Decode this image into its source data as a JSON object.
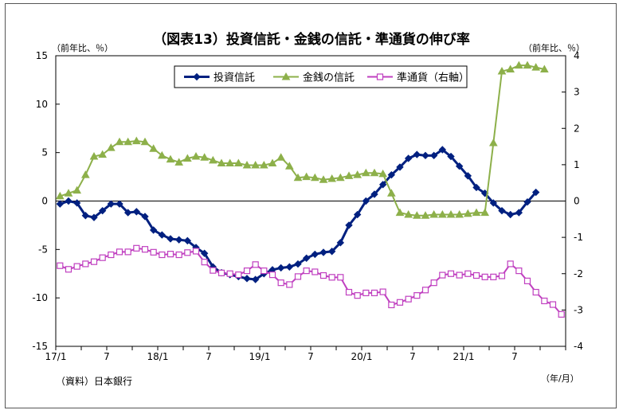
{
  "chart_data": {
    "type": "line",
    "title": "（図表13）投資信託・金銭の信託・準通貨の伸び率",
    "ylabel_left": "（前年比、％）",
    "ylabel_right": "（前年比、％）",
    "xlabel": "（年/月）",
    "source": "（資料）日本銀行",
    "ylim_left": [
      -15,
      15
    ],
    "yticks_left": [
      "15",
      "10",
      "5",
      "0",
      "-5",
      "-10",
      "-15"
    ],
    "ylim_right": [
      -4,
      4
    ],
    "yticks_right": [
      "4",
      "3",
      "2",
      "1",
      "0",
      "-1",
      "-2",
      "-3",
      "-4"
    ],
    "x_tick_labels": [
      "17/1",
      "7",
      "18/1",
      "7",
      "19/1",
      "7",
      "20/1",
      "7",
      "21/1",
      "7"
    ],
    "legend_position": "top-center",
    "grid": false,
    "series": [
      {
        "name": "投資信託",
        "axis": "left",
        "color": "#002080",
        "marker": "diamond",
        "values": [
          -0.3,
          0.0,
          -0.2,
          -1.5,
          -1.7,
          -1.0,
          -0.3,
          -0.3,
          -1.2,
          -1.1,
          -1.6,
          -3.0,
          -3.5,
          -3.9,
          -4.0,
          -4.1,
          -4.8,
          -5.4,
          -6.8,
          -7.4,
          -7.6,
          -7.8,
          -8.0,
          -8.1,
          -7.5,
          -7.1,
          -6.9,
          -6.8,
          -6.5,
          -5.9,
          -5.5,
          -5.3,
          -5.2,
          -4.3,
          -2.5,
          -1.4,
          0.0,
          0.7,
          1.7,
          2.7,
          3.5,
          4.4,
          4.8,
          4.7,
          4.7,
          5.3,
          4.6,
          3.6,
          2.6,
          1.4,
          0.8,
          -0.2,
          -1.0,
          -1.4,
          -1.2,
          -0.1,
          0.9
        ]
      },
      {
        "name": "金銭の信託",
        "axis": "left",
        "color": "#8db04a",
        "marker": "triangle",
        "values": [
          0.5,
          0.8,
          1.1,
          2.7,
          4.6,
          4.8,
          5.5,
          6.1,
          6.1,
          6.2,
          6.1,
          5.4,
          4.7,
          4.3,
          4.0,
          4.4,
          4.6,
          4.5,
          4.2,
          3.9,
          3.9,
          3.9,
          3.7,
          3.7,
          3.7,
          3.9,
          4.5,
          3.6,
          2.4,
          2.5,
          2.4,
          2.2,
          2.3,
          2.4,
          2.6,
          2.7,
          2.9,
          2.9,
          2.8,
          0.8,
          -1.2,
          -1.4,
          -1.5,
          -1.5,
          -1.4,
          -1.4,
          -1.4,
          -1.4,
          -1.3,
          -1.2,
          -1.2,
          6.0,
          13.4,
          13.6,
          14.0,
          14.0,
          13.8,
          13.6
        ]
      },
      {
        "name": "準通貨（右軸）",
        "axis": "right",
        "color": "#c040c0",
        "marker": "square",
        "values": [
          -1.78,
          -1.88,
          -1.8,
          -1.73,
          -1.67,
          -1.56,
          -1.48,
          -1.4,
          -1.4,
          -1.3,
          -1.33,
          -1.41,
          -1.48,
          -1.46,
          -1.48,
          -1.42,
          -1.38,
          -1.68,
          -1.91,
          -1.98,
          -2.0,
          -2.03,
          -1.92,
          -1.75,
          -1.92,
          -2.03,
          -2.25,
          -2.3,
          -2.08,
          -1.92,
          -1.95,
          -2.05,
          -2.1,
          -2.1,
          -2.51,
          -2.6,
          -2.53,
          -2.53,
          -2.5,
          -2.86,
          -2.79,
          -2.7,
          -2.6,
          -2.45,
          -2.25,
          -2.04,
          -2.0,
          -2.04,
          -2.0,
          -2.05,
          -2.09,
          -2.09,
          -2.06,
          -1.73,
          -1.92,
          -2.2,
          -2.51,
          -2.75,
          -2.85,
          -3.12
        ]
      }
    ]
  }
}
